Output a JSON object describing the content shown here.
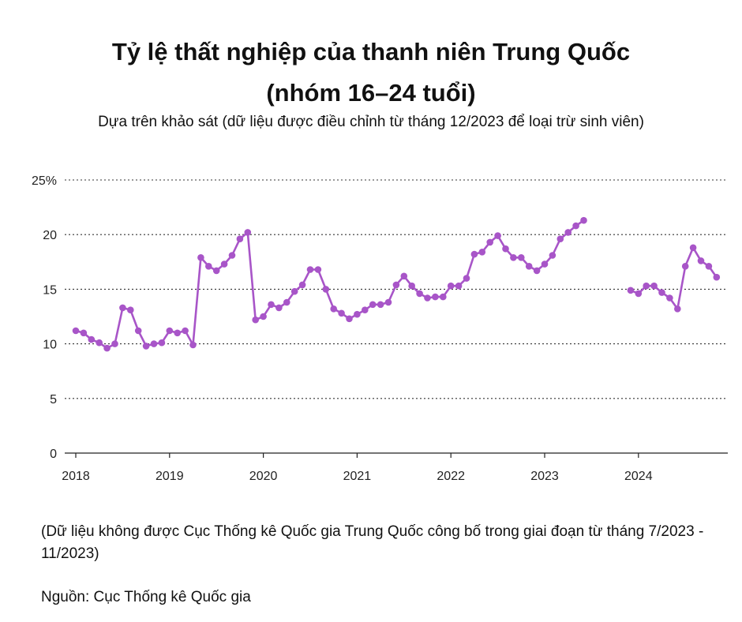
{
  "header": {
    "title_line1": "Tỷ lệ thất nghiệp của thanh niên Trung Quốc",
    "title_line2": "(nhóm 16–24 tuổi)",
    "subtitle": "Dựa trên khảo sát (dữ liệu được điều chỉnh từ tháng 12/2023 để loại trừ sinh viên)"
  },
  "footer": {
    "note": "(Dữ liệu không được Cục Thống kê Quốc gia Trung Quốc công bố trong giai đoạn từ tháng 7/2023 - 11/2023)",
    "source": "Nguồn: Cục Thống kê Quốc gia"
  },
  "colors": {
    "line": "#a855c8",
    "marker": "#a855c8",
    "grid": "#333333",
    "axis": "#222222",
    "text": "#222222"
  },
  "chart_data": {
    "type": "line",
    "x_axis": {
      "type": "time",
      "min": "2018-01",
      "max": "2024-12",
      "tick_labels": [
        "2018",
        "2019",
        "2020",
        "2021",
        "2022",
        "2023",
        "2024"
      ]
    },
    "y_axis": {
      "min": 0,
      "max": 25,
      "ticks": [
        0,
        5,
        10,
        15,
        20,
        25
      ],
      "tick_labels": [
        "0",
        "5",
        "10",
        "15",
        "20",
        "25%"
      ]
    },
    "grid": true,
    "series": [
      {
        "points": [
          [
            "2018-01",
            11.2
          ],
          [
            "2018-02",
            11.0
          ],
          [
            "2018-03",
            10.4
          ],
          [
            "2018-04",
            10.1
          ],
          [
            "2018-05",
            9.6
          ],
          [
            "2018-06",
            10.0
          ],
          [
            "2018-07",
            13.3
          ],
          [
            "2018-08",
            13.1
          ],
          [
            "2018-09",
            11.2
          ],
          [
            "2018-10",
            9.8
          ],
          [
            "2018-11",
            10.0
          ],
          [
            "2018-12",
            10.1
          ],
          [
            "2019-01",
            11.2
          ],
          [
            "2019-02",
            11.0
          ],
          [
            "2019-03",
            11.2
          ],
          [
            "2019-04",
            9.9
          ],
          [
            "2019-05",
            17.9
          ],
          [
            "2019-06",
            17.1
          ],
          [
            "2019-07",
            16.7
          ],
          [
            "2019-08",
            17.3
          ],
          [
            "2019-09",
            18.1
          ],
          [
            "2019-10",
            19.6
          ],
          [
            "2019-11",
            20.2
          ],
          [
            "2019-12",
            12.2
          ],
          [
            "2020-01",
            12.5
          ],
          [
            "2020-02",
            13.6
          ],
          [
            "2020-03",
            13.3
          ],
          [
            "2020-04",
            13.8
          ],
          [
            "2020-05",
            14.8
          ],
          [
            "2020-06",
            15.4
          ],
          [
            "2020-07",
            16.8
          ],
          [
            "2020-08",
            16.8
          ],
          [
            "2020-09",
            15.0
          ],
          [
            "2020-10",
            13.2
          ],
          [
            "2020-11",
            12.8
          ],
          [
            "2020-12",
            12.3
          ],
          [
            "2021-01",
            12.7
          ],
          [
            "2021-02",
            13.1
          ],
          [
            "2021-03",
            13.6
          ],
          [
            "2021-04",
            13.6
          ],
          [
            "2021-05",
            13.8
          ],
          [
            "2021-06",
            15.4
          ],
          [
            "2021-07",
            16.2
          ],
          [
            "2021-08",
            15.3
          ],
          [
            "2021-09",
            14.6
          ],
          [
            "2021-10",
            14.2
          ],
          [
            "2021-11",
            14.3
          ],
          [
            "2021-12",
            14.3
          ],
          [
            "2022-01",
            15.3
          ],
          [
            "2022-02",
            15.3
          ],
          [
            "2022-03",
            16.0
          ],
          [
            "2022-04",
            18.2
          ],
          [
            "2022-05",
            18.4
          ],
          [
            "2022-06",
            19.3
          ],
          [
            "2022-07",
            19.9
          ],
          [
            "2022-08",
            18.7
          ],
          [
            "2022-09",
            17.9
          ],
          [
            "2022-10",
            17.9
          ],
          [
            "2022-11",
            17.1
          ],
          [
            "2022-12",
            16.7
          ],
          [
            "2023-01",
            17.3
          ],
          [
            "2023-02",
            18.1
          ],
          [
            "2023-03",
            19.6
          ],
          [
            "2023-04",
            20.2
          ],
          [
            "2023-05",
            20.8
          ],
          [
            "2023-06",
            21.3
          ]
        ]
      },
      {
        "points": [
          [
            "2023-12",
            14.9
          ],
          [
            "2024-01",
            14.6
          ],
          [
            "2024-02",
            15.3
          ],
          [
            "2024-03",
            15.3
          ],
          [
            "2024-04",
            14.7
          ],
          [
            "2024-05",
            14.2
          ],
          [
            "2024-06",
            13.2
          ],
          [
            "2024-07",
            17.1
          ],
          [
            "2024-08",
            18.8
          ],
          [
            "2024-09",
            17.6
          ],
          [
            "2024-10",
            17.1
          ],
          [
            "2024-11",
            16.1
          ]
        ]
      }
    ]
  }
}
